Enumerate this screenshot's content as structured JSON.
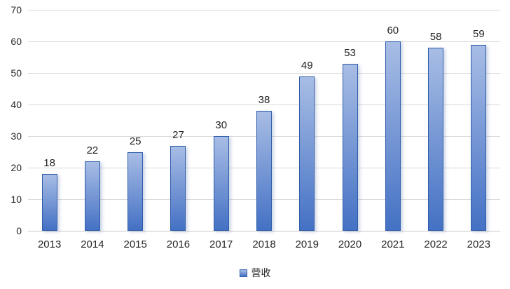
{
  "legend": {
    "label": "营收"
  },
  "chart_data": {
    "type": "bar",
    "title": "",
    "xlabel": "",
    "ylabel": "",
    "categories": [
      "2013",
      "2014",
      "2015",
      "2016",
      "2017",
      "2018",
      "2019",
      "2020",
      "2021",
      "2022",
      "2023"
    ],
    "series": [
      {
        "name": "营收",
        "values": [
          18,
          22,
          25,
          27,
          30,
          38,
          49,
          53,
          60,
          58,
          59
        ]
      }
    ],
    "ylim": [
      0,
      70
    ],
    "y_ticks": [
      0,
      10,
      20,
      30,
      40,
      50,
      60,
      70
    ],
    "grid": "horizontal",
    "legend_position": "bottom",
    "colors": {
      "bar_gradient_top": "#a8bde5",
      "bar_gradient_bottom": "#4471c4",
      "bar_border": "#2f5da9",
      "gridline": "#d9d9d9",
      "axis_line": "#c8c8c8",
      "label_text": "#262626"
    }
  }
}
